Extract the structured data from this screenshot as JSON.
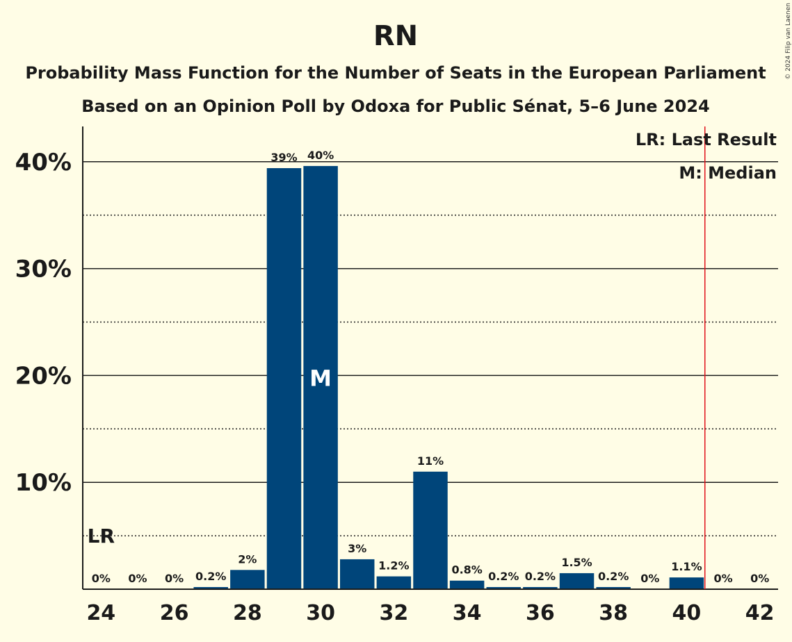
{
  "chart_data": {
    "type": "bar",
    "title": "RN",
    "subtitle_lines": [
      "Probability Mass Function for the Number of Seats in the European Parliament",
      "Based on an Opinion Poll by Odoxa for Public Sénat, 5–6 June 2024"
    ],
    "x": [
      24,
      25,
      26,
      27,
      28,
      29,
      30,
      31,
      32,
      33,
      34,
      35,
      36,
      37,
      38,
      39,
      40,
      41,
      42
    ],
    "values": [
      0,
      0,
      0,
      0.2,
      1.8,
      39.4,
      39.6,
      2.8,
      1.2,
      11.0,
      0.8,
      0.2,
      0.2,
      1.5,
      0.2,
      0,
      1.1,
      0,
      0
    ],
    "data_labels": [
      "0%",
      "0%",
      "0%",
      "0.2%",
      "2%",
      "39%",
      "40%",
      "3%",
      "1.2%",
      "11%",
      "0.8%",
      "0.2%",
      "0.2%",
      "1.5%",
      "0.2%",
      "0%",
      "1.1%",
      "0%",
      "0%"
    ],
    "x_tick_labels": [
      "24",
      "26",
      "28",
      "30",
      "32",
      "34",
      "36",
      "38",
      "40",
      "42"
    ],
    "y_tick_labels": [
      "10%",
      "20%",
      "30%",
      "40%"
    ],
    "y_ticks": [
      10,
      20,
      30,
      40
    ],
    "y_minor_gridlines": [
      5,
      15,
      25,
      35
    ],
    "ylim": [
      0,
      43.3
    ],
    "xlim": [
      23.5,
      42.5
    ],
    "bar_color": "#00457a",
    "background_color": "#fffde6",
    "last_result": {
      "seats": 40.5,
      "marker_x": 24,
      "label": "LR",
      "line_color": "#e0101a"
    },
    "median": {
      "seats": 30,
      "label": "M"
    },
    "legend": {
      "placement": "top-right",
      "entries": [
        "LR: Last Result",
        "M: Median"
      ]
    },
    "grid": true
  },
  "copyright": "© 2024 Filip van Laenen"
}
